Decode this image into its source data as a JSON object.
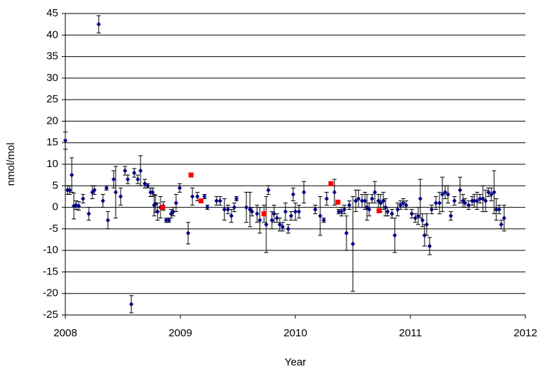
{
  "chart_data": {
    "type": "scatter",
    "x_label": "Year",
    "y_label": "nmol/mol",
    "xlim": [
      2008,
      2012
    ],
    "xticks": [
      2008,
      2009,
      2010,
      2011,
      2012
    ],
    "ylim": [
      -25,
      45
    ],
    "yticks": [
      -25,
      -20,
      -15,
      -10,
      -5,
      0,
      5,
      10,
      15,
      20,
      25,
      30,
      35,
      40,
      45
    ],
    "grid": true,
    "series": [
      {
        "color": "#000080",
        "marker": "diamond",
        "x": [
          2008.0,
          2008.019,
          2008.037,
          2008.056,
          2008.074,
          2008.093,
          2008.117,
          2008.154,
          2008.204,
          2008.235,
          2008.253,
          2008.29,
          2008.327,
          2008.358,
          2008.37,
          2008.42,
          2008.438,
          2008.481,
          2008.519,
          2008.543,
          2008.574,
          2008.599,
          2008.63,
          2008.654,
          2008.691,
          2008.716,
          2008.741,
          2008.759,
          2008.772,
          2008.784,
          2008.802,
          2008.827,
          2008.852,
          2008.877,
          2008.901,
          2008.92,
          2008.938,
          2008.963,
          2008.994,
          2009.068,
          2009.105,
          2009.148,
          2009.21,
          2009.235,
          2009.315,
          2009.346,
          2009.383,
          2009.414,
          2009.444,
          2009.469,
          2009.488,
          2009.574,
          2009.605,
          2009.623,
          2009.667,
          2009.691,
          2009.728,
          2009.747,
          2009.765,
          2009.796,
          2009.815,
          2009.84,
          2009.864,
          2009.889,
          2009.914,
          2009.938,
          2009.963,
          2009.981,
          2010.0,
          2010.031,
          2010.074,
          2010.173,
          2010.216,
          2010.247,
          2010.272,
          2010.34,
          2010.377,
          2010.401,
          2010.426,
          2010.444,
          2010.469,
          2010.5,
          2010.525,
          2010.549,
          2010.58,
          2010.605,
          2010.623,
          2010.642,
          2010.667,
          2010.691,
          2010.722,
          2010.741,
          2010.765,
          2010.784,
          2010.802,
          2010.84,
          2010.864,
          2010.889,
          2010.914,
          2010.938,
          2010.963,
          2011.012,
          2011.043,
          2011.068,
          2011.086,
          2011.105,
          2011.123,
          2011.142,
          2011.167,
          2011.185,
          2011.222,
          2011.253,
          2011.278,
          2011.302,
          2011.327,
          2011.352,
          2011.383,
          2011.432,
          2011.457,
          2011.475,
          2011.506,
          2011.537,
          2011.556,
          2011.58,
          2011.605,
          2011.63,
          2011.654,
          2011.679,
          2011.704,
          2011.728,
          2011.747,
          2011.772,
          2011.79,
          2011.815
        ],
        "values": [
          15.5,
          4,
          4,
          7.5,
          0.3,
          0.5,
          0.3,
          2,
          -1.5,
          3.5,
          4,
          42.5,
          1.5,
          4.5,
          -3,
          6.5,
          3.5,
          2.5,
          8.5,
          6.5,
          -22.5,
          8,
          6.5,
          8.5,
          5.5,
          5,
          3.5,
          3.5,
          0.5,
          0.8,
          -1,
          0,
          0.3,
          -3,
          -3,
          -1.5,
          -1,
          1,
          4.5,
          -6,
          2.5,
          2.5,
          2.5,
          0,
          1.5,
          1.5,
          -0.5,
          -0.5,
          -2,
          0,
          2,
          0,
          -0.5,
          -1,
          -1.5,
          -3,
          -1.5,
          -4,
          4,
          -3,
          -1.5,
          -2.5,
          -4,
          -4.5,
          -1,
          -5,
          -2,
          3,
          -1,
          -1,
          3.5,
          -0.5,
          -2,
          -3,
          2,
          3.5,
          -1,
          -1,
          -0.5,
          -6,
          0.5,
          -8.5,
          1.5,
          2,
          1.5,
          1.5,
          0,
          -0.5,
          2,
          3.5,
          1.5,
          1,
          1.5,
          0,
          -1,
          -1.5,
          -6.5,
          -0.5,
          0.5,
          1,
          0.5,
          -1.5,
          -2.5,
          -2,
          2,
          -3,
          -6.5,
          -4,
          -9,
          -0.5,
          1,
          1,
          3,
          3.5,
          3,
          -2,
          1.5,
          4,
          1.5,
          1,
          0.5,
          1.5,
          1.5,
          1.5,
          2,
          2,
          1.5,
          3.5,
          3,
          3.5,
          -0.5,
          -0.5,
          -4,
          -2.5
        ],
        "errors": [
          2,
          1,
          1,
          4,
          3,
          1,
          1,
          1,
          1.5,
          1.5,
          1,
          2,
          1.5,
          0.5,
          2,
          2,
          6,
          2,
          1,
          1,
          2,
          1,
          1,
          3.5,
          1,
          0.5,
          1,
          1,
          2.5,
          2,
          2,
          2.5,
          1,
          0.5,
          0.5,
          1,
          1,
          2,
          1,
          2.5,
          2,
          1,
          0.5,
          0.5,
          1,
          1,
          2.5,
          1,
          1.5,
          1,
          0.5,
          3.5,
          4,
          1,
          2,
          3,
          2,
          6.5,
          1,
          2,
          2,
          1,
          1.5,
          1,
          2,
          1,
          1,
          1.5,
          2,
          1.5,
          2.5,
          1,
          4.5,
          0.5,
          1.5,
          3,
          0.5,
          1,
          1,
          4,
          1,
          11,
          2.5,
          2,
          1.5,
          2,
          3,
          1.5,
          1,
          2.5,
          1.5,
          2,
          2,
          2,
          1,
          1,
          4,
          1.5,
          1,
          1,
          1,
          1,
          1,
          2,
          4.5,
          1.5,
          2.5,
          2.5,
          2,
          1,
          1.5,
          2.5,
          4,
          1.5,
          2,
          1,
          1,
          3,
          1.5,
          1,
          1,
          1,
          1.5,
          2,
          1,
          3,
          2.5,
          1,
          1.5,
          5,
          2.5,
          1,
          1,
          3
        ]
      },
      {
        "color": "#ff0000",
        "marker": "square",
        "x": [
          2008.846,
          2009.093,
          2009.179,
          2009.728,
          2010.309,
          2010.37,
          2010.728
        ],
        "values": [
          0,
          7.5,
          1.5,
          -1.5,
          5.5,
          1.2,
          -0.8
        ]
      }
    ]
  }
}
